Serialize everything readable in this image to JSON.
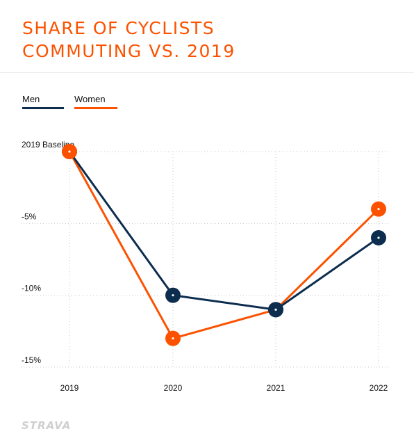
{
  "chart_data": {
    "type": "line",
    "title_lines": [
      "SHARE OF CYCLISTS",
      "COMMUTING VS. 2019"
    ],
    "categories": [
      "2019",
      "2020",
      "2021",
      "2022"
    ],
    "series": [
      {
        "name": "Men",
        "color": "#0d2d4e",
        "values": [
          0,
          -10,
          -11,
          -6
        ]
      },
      {
        "name": "Women",
        "color": "#fc5200",
        "values": [
          0,
          -13,
          -11,
          -4
        ]
      }
    ],
    "y_ticks": [
      {
        "value": 0,
        "label": "2019 Baseline"
      },
      {
        "value": -5,
        "label": "-5%"
      },
      {
        "value": -10,
        "label": "-10%"
      },
      {
        "value": -15,
        "label": "-15%"
      }
    ],
    "ylim": [
      -15,
      0
    ],
    "grid": true,
    "legend_position": "top-left"
  },
  "brand": {
    "logo_text": "STRAVA"
  }
}
